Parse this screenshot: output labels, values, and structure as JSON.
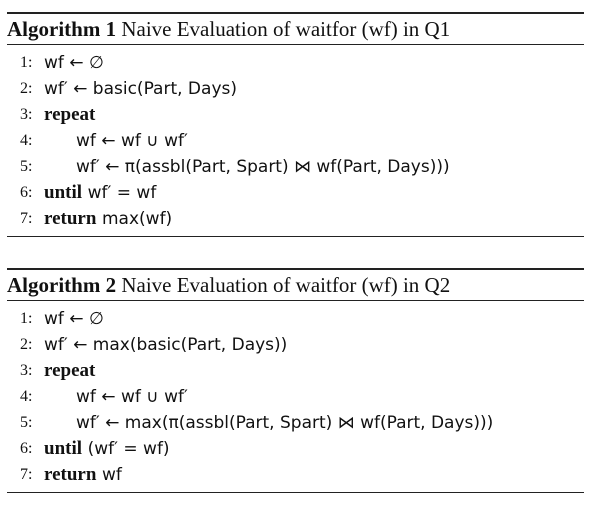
{
  "algorithms": [
    {
      "label": "Algorithm 1",
      "title": "Naive Evaluation of waitfor (wf) in Q1",
      "lines": [
        {
          "num": "1:",
          "keyword": "",
          "code": "wf ← ∅",
          "indent": false
        },
        {
          "num": "2:",
          "keyword": "",
          "code": "wf′ ← basic(Part, Days)",
          "indent": false
        },
        {
          "num": "3:",
          "keyword": "repeat",
          "code": "",
          "indent": false
        },
        {
          "num": "4:",
          "keyword": "",
          "code": "wf ← wf ∪ wf′",
          "indent": true
        },
        {
          "num": "5:",
          "keyword": "",
          "code": "wf′ ← π(assbl(Part, Spart) ⋈ wf(Part, Days)))",
          "indent": true
        },
        {
          "num": "6:",
          "keyword": "until",
          "code": "wf′ = wf",
          "indent": false
        },
        {
          "num": "7:",
          "keyword": "return",
          "code": "max(wf)",
          "indent": false
        }
      ]
    },
    {
      "label": "Algorithm 2",
      "title": "Naive Evaluation of waitfor (wf) in Q2",
      "lines": [
        {
          "num": "1:",
          "keyword": "",
          "code": "wf ← ∅",
          "indent": false
        },
        {
          "num": "2:",
          "keyword": "",
          "code": "wf′ ← max(basic(Part, Days))",
          "indent": false
        },
        {
          "num": "3:",
          "keyword": "repeat",
          "code": "",
          "indent": false
        },
        {
          "num": "4:",
          "keyword": "",
          "code": "wf ← wf ∪ wf′",
          "indent": true
        },
        {
          "num": "5:",
          "keyword": "",
          "code": "wf′ ← max(π(assbl(Part, Spart) ⋈ wf(Part, Days)))",
          "indent": true
        },
        {
          "num": "6:",
          "keyword": "until",
          "code": "(wf′ = wf)",
          "indent": false
        },
        {
          "num": "7:",
          "keyword": "return",
          "code": "wf",
          "indent": false
        }
      ]
    }
  ]
}
